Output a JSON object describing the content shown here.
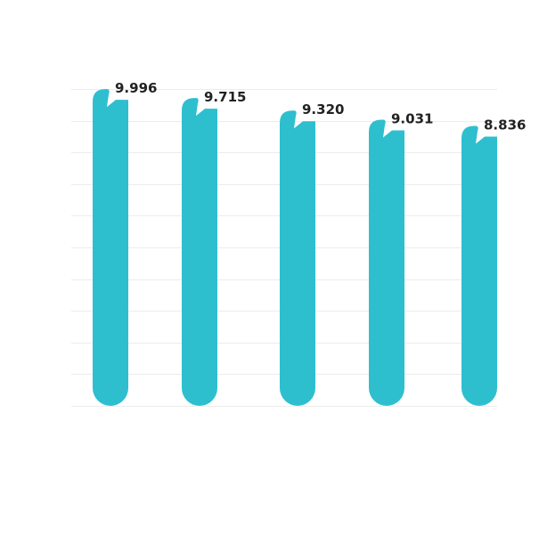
{
  "chart_data": {
    "type": "bar",
    "categories": [
      "",
      "",
      "",
      "",
      ""
    ],
    "values": [
      9.996,
      9.715,
      9.32,
      9.031,
      8.836
    ],
    "value_labels": [
      "9.996",
      "9.715",
      "9.320",
      "9.031",
      "8.836"
    ],
    "title": "",
    "xlabel": "",
    "ylabel": "",
    "ylim": [
      0,
      10
    ],
    "grid": true,
    "legend": "none",
    "bar_color": "#2ebfcf"
  }
}
